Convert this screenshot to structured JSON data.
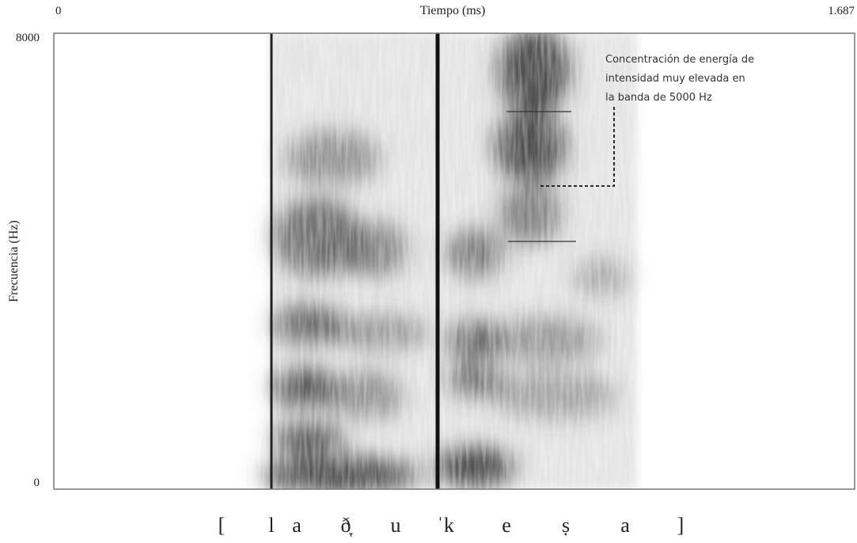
{
  "chart_data": {
    "type": "spectrogram",
    "xlabel": "Tiempo (ms)",
    "ylabel": "Frecuencia (Hz)",
    "xlim": [
      0,
      1687
    ],
    "xticks": [
      0,
      {
        "value": 1687,
        "label": "1.687"
      }
    ],
    "ylim": [
      0,
      8000
    ],
    "yticks": [
      0,
      8000
    ],
    "annotation": [
      "Concentración de energía de",
      "intensidad muy elevada en",
      "la banda de 5000 Hz"
    ],
    "transcription": [
      "[",
      "l",
      "a",
      "ð̞",
      "u",
      "ˈk",
      "e",
      "ṣ",
      "a",
      "]"
    ]
  }
}
